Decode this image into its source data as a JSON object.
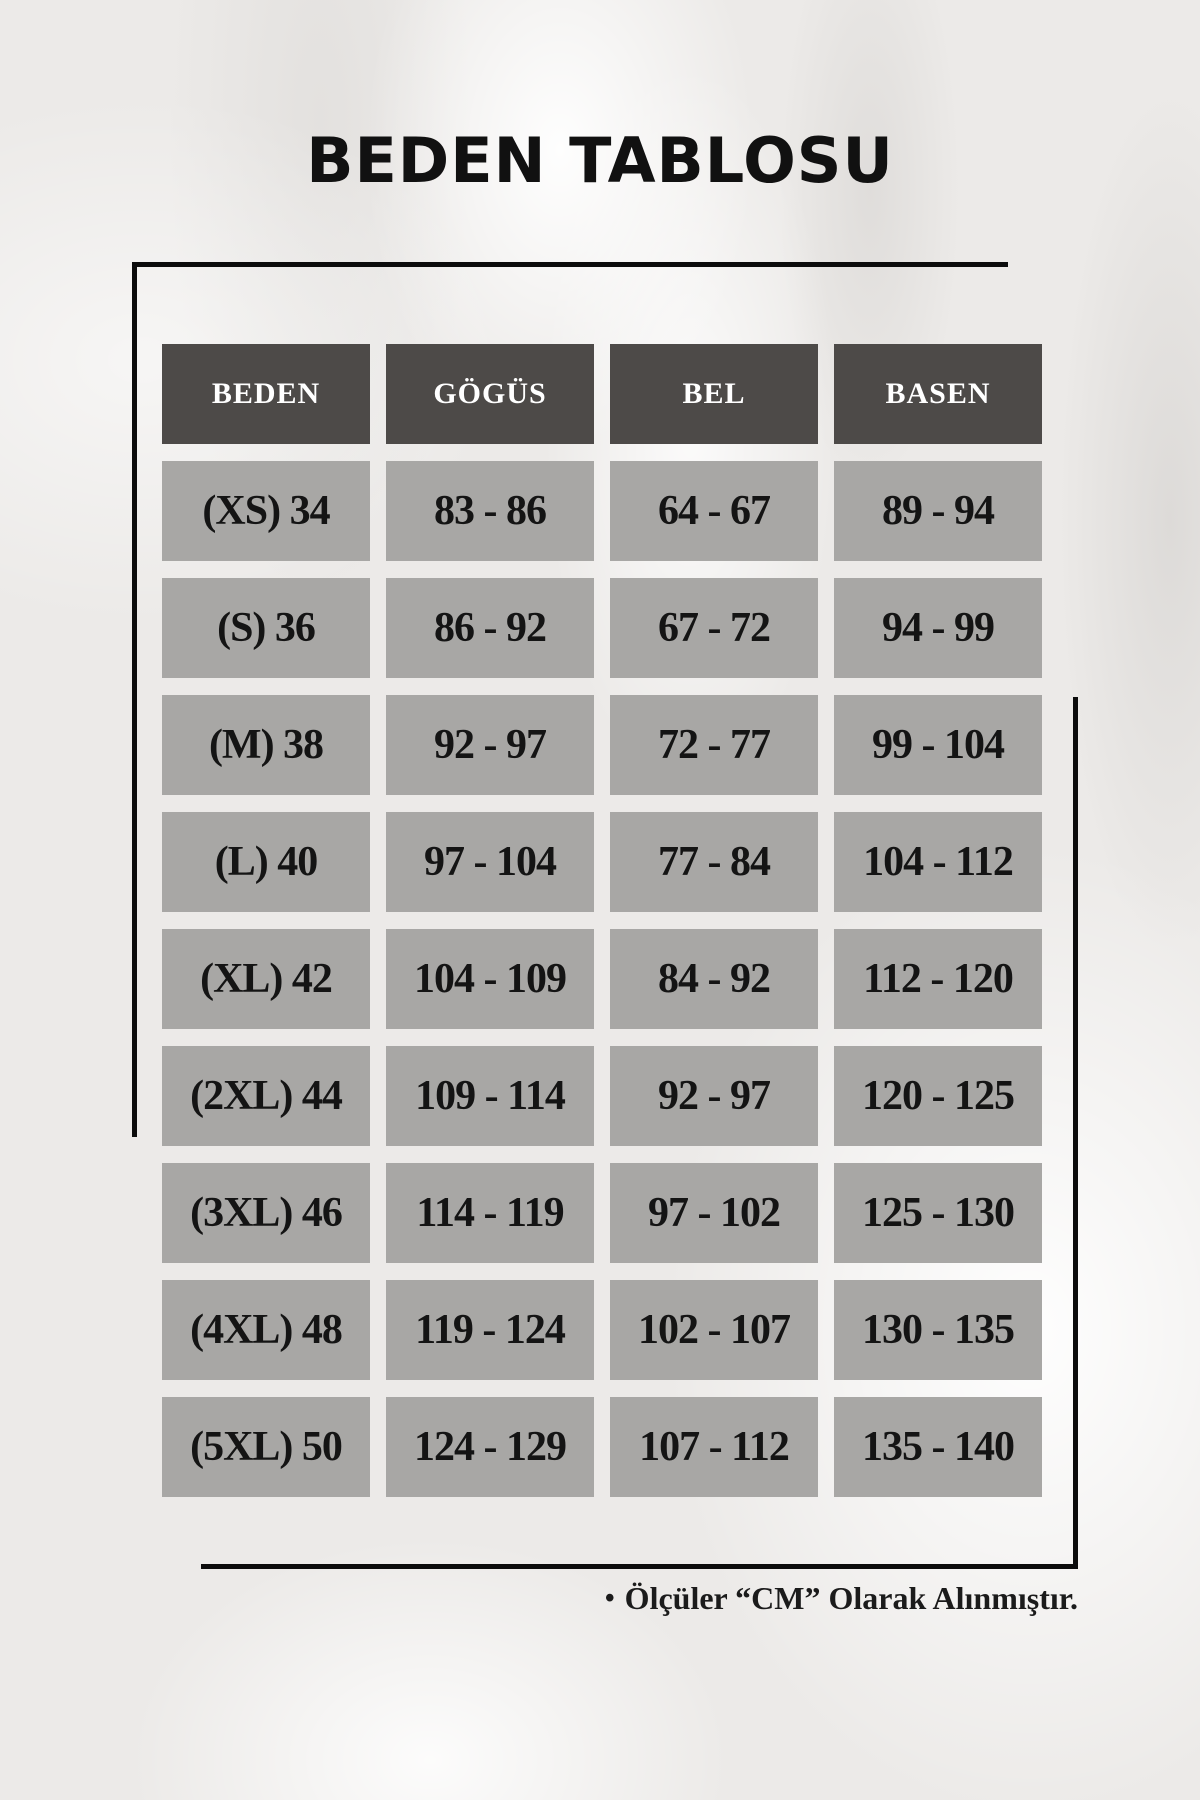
{
  "title": "BEDEN TABLOSU",
  "chart_data": {
    "type": "table",
    "title": "BEDEN TABLOSU",
    "columns": [
      "BEDEN",
      "GÖGÜS",
      "BEL",
      "BASEN"
    ],
    "rows": [
      [
        "(XS) 34",
        "83 - 86",
        "64 - 67",
        "89 - 94"
      ],
      [
        "(S) 36",
        "86 - 92",
        "67 - 72",
        "94 - 99"
      ],
      [
        "(M) 38",
        "92 - 97",
        "72 - 77",
        "99 - 104"
      ],
      [
        "(L) 40",
        "97 - 104",
        "77 - 84",
        "104 - 112"
      ],
      [
        "(XL) 42",
        "104 - 109",
        "84 - 92",
        "112 - 120"
      ],
      [
        "(2XL) 44",
        "109 - 114",
        "92 - 97",
        "120 - 125"
      ],
      [
        "(3XL) 46",
        "114 - 119",
        "97 - 102",
        "125 - 130"
      ],
      [
        "(4XL) 48",
        "119 - 124",
        "102 - 107",
        "130 - 135"
      ],
      [
        "(5XL) 50",
        "124 - 129",
        "107 - 112",
        "135 - 140"
      ]
    ]
  },
  "footer": {
    "bullet": "•",
    "text": "Ölçüler “CM” Olarak Alınmıştır."
  },
  "colors": {
    "page_bg": "#eceae8",
    "header_bg": "#4d4a48",
    "header_text": "#ffffff",
    "cell_bg": "#a8a7a5",
    "cell_text": "#141414",
    "line": "#0c0c0c",
    "title_color": "#111111",
    "note_color": "#1b1b1b"
  }
}
